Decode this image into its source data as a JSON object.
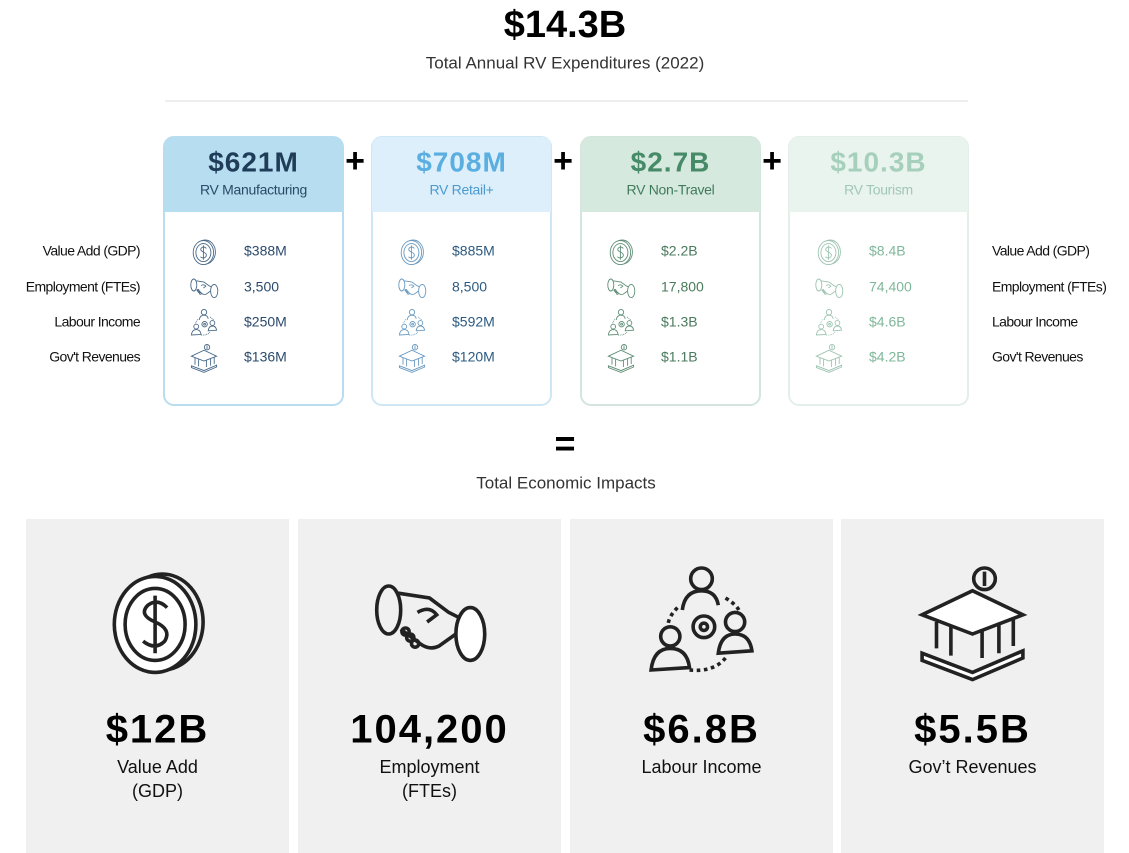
{
  "header": {
    "total": "$14.3B",
    "subtitle": "Total Annual RV Expenditures (2022)"
  },
  "row_labels": [
    "Value Add (GDP)",
    "Employment (FTEs)",
    "Labour Income",
    "Gov't Revenues"
  ],
  "plus": "+",
  "cards": [
    {
      "value": "$621M",
      "label": "RV Manufacturing",
      "metrics": [
        "$388M",
        "3,500",
        "$250M",
        "$136M"
      ]
    },
    {
      "value": "$708M",
      "label": "RV Retail+",
      "metrics": [
        "$885M",
        "8,500",
        "$592M",
        "$120M"
      ]
    },
    {
      "value": "$2.7B",
      "label": "RV Non-Travel",
      "metrics": [
        "$2.2B",
        "17,800",
        "$1.3B",
        "$1.1B"
      ]
    },
    {
      "value": "$10.3B",
      "label": "RV Tourism",
      "metrics": [
        "$8.4B",
        "74,400",
        "$4.6B",
        "$4.2B"
      ]
    }
  ],
  "equals": "=",
  "impacts": {
    "title": "Total Economic Impacts",
    "items": [
      {
        "value": "$12B",
        "label_lines": [
          "Value Add",
          "(GDP)"
        ]
      },
      {
        "value": "104,200",
        "label_lines": [
          "Employment",
          "(FTEs)"
        ]
      },
      {
        "value": "$6.8B",
        "label_lines": [
          "Labour Income"
        ]
      },
      {
        "value": "$5.5B",
        "label_lines": [
          "Gov’t Revenues"
        ]
      }
    ]
  }
}
